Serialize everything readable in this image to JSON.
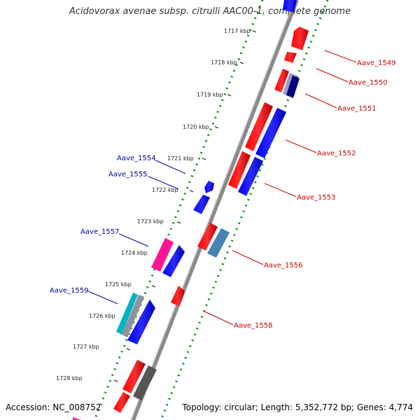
{
  "title": "Acidovorax avenae subsp. citrulli AAC00-1, complete genome",
  "accession": "Accession: NC_008752",
  "topology": "Topology: circular; Length: 5,352,772 bp; Genes: 4,774",
  "ticks": [
    "1717 kbp",
    "1718 kbp",
    "1719 kbp",
    "1720 kbp",
    "1721 kbp",
    "1722 kbp",
    "1723 kbp",
    "1724 kbp",
    "1725 kbp",
    "1726 kbp",
    "1727 kbp",
    "1728 kbp"
  ],
  "labels_right": [
    "Aave_1549",
    "Aave_1550",
    "Aave_1551",
    "Aave_1552",
    "Aave_1553",
    "Aave_1556",
    "Aave_1558"
  ],
  "labels_left": [
    "Aave_1554",
    "Aave_1555",
    "Aave_1557",
    "Aave_1559"
  ],
  "colors": {
    "forward_gene": "#ff0000",
    "reverse_gene": "#0000ff",
    "label_right": "#cc0000",
    "label_left": "#000099",
    "backbone": "#808080",
    "tick_dots": "#008800"
  }
}
